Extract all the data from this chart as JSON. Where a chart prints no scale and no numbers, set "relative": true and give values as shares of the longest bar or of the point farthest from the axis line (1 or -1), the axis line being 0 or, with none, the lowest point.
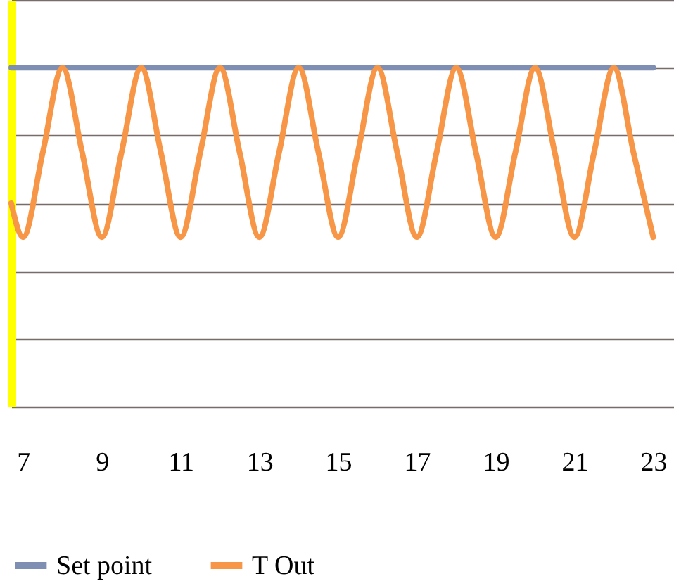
{
  "chart_data": {
    "type": "line",
    "relative": true,
    "grid": "y",
    "legend": "bottom",
    "marker": "none",
    "line_style": "solid",
    "xlim": [
      6.7,
      23.6
    ],
    "xticks": [
      7,
      9,
      11,
      13,
      15,
      17,
      19,
      21,
      23
    ],
    "series": [
      {
        "name": "Set point",
        "color": "#7f8fb3",
        "x": [
          6.7,
          23
        ],
        "values": [
          1,
          1
        ]
      },
      {
        "name": "T Out",
        "color": "#f79646",
        "x": [
          6.7,
          7,
          7.5,
          8,
          8.5,
          9,
          9.5,
          10,
          10.5,
          11,
          11.5,
          12,
          12.5,
          13,
          13.5,
          14,
          14.5,
          15,
          15.5,
          16,
          16.5,
          17,
          17.5,
          18,
          18.5,
          19,
          19.5,
          20,
          20.5,
          21,
          21.5,
          22,
          22.5,
          23
        ],
        "values": [
          0.6,
          0.5,
          0.75,
          1,
          0.75,
          0.5,
          0.75,
          1,
          0.75,
          0.5,
          0.75,
          1,
          0.75,
          0.5,
          0.75,
          1,
          0.75,
          0.5,
          0.75,
          1,
          0.75,
          0.5,
          0.75,
          1,
          0.75,
          0.5,
          0.75,
          1,
          0.75,
          0.5,
          0.75,
          1,
          0.75,
          0.5
        ]
      }
    ]
  }
}
